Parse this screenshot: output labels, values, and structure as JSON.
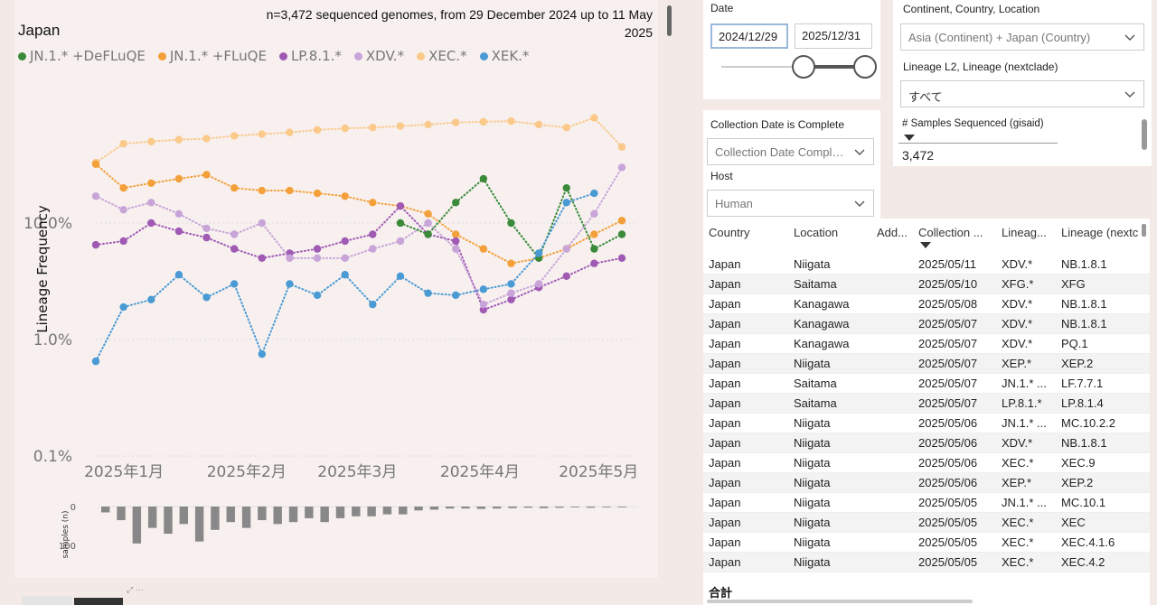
{
  "chart": {
    "title": "Japan",
    "subtitle": "n=3,472 sequenced genomes, from 29 December 2024 up to 11 May 2025",
    "ylabel": "Lineage Frequency",
    "hist_ylabel": "samples (n)",
    "hist_ticks": [
      "0",
      "100"
    ],
    "yticks": [
      {
        "label": "10.0%",
        "value": 10
      },
      {
        "label": "1.0%",
        "value": 1
      },
      {
        "label": "0.1%",
        "value": 0.1
      }
    ],
    "xticks": [
      {
        "label": "2025年1月",
        "day": 3
      },
      {
        "label": "2025年2月",
        "day": 34
      },
      {
        "label": "2025年3月",
        "day": 62
      },
      {
        "label": "2025年4月",
        "day": 93
      },
      {
        "label": "2025年5月",
        "day": 123
      }
    ],
    "legend": [
      {
        "name": "JN.1.* +DeFLuQE",
        "color": "#3a8a3a"
      },
      {
        "name": "JN.1.* +FLuQE",
        "color": "#f4a03a"
      },
      {
        "name": "LP.8.1.*",
        "color": "#a05ab4"
      },
      {
        "name": "XDV.*",
        "color": "#c8a4d8"
      },
      {
        "name": "XEC.*",
        "color": "#fbc98a"
      },
      {
        "name": "XEK.*",
        "color": "#4a9ad4"
      }
    ]
  },
  "chart_data": {
    "type": "line",
    "title": "Japan",
    "xlabel": "",
    "ylabel": "Lineage Frequency",
    "yscale": "log",
    "ylim": [
      0.1,
      100
    ],
    "x_unit": "date",
    "series": [
      {
        "name": "XEC.*",
        "color": "#fbc98a",
        "x": [
          "2024-12-29",
          "2025-01-05",
          "2025-01-12",
          "2025-01-19",
          "2025-01-26",
          "2025-02-02",
          "2025-02-09",
          "2025-02-16",
          "2025-02-23",
          "2025-03-02",
          "2025-03-09",
          "2025-03-16",
          "2025-03-23",
          "2025-03-30",
          "2025-04-06",
          "2025-04-13",
          "2025-04-20",
          "2025-04-27",
          "2025-05-04",
          "2025-05-11"
        ],
        "y": [
          33,
          48,
          50,
          52,
          53,
          56,
          58,
          60,
          63,
          65,
          66,
          68,
          70,
          73,
          74,
          75,
          70,
          66,
          80,
          45
        ]
      },
      {
        "name": "JN.1.* +FLuQE",
        "color": "#f4a03a",
        "x": [
          "2024-12-29",
          "2025-01-05",
          "2025-01-12",
          "2025-01-19",
          "2025-01-26",
          "2025-02-02",
          "2025-02-09",
          "2025-02-16",
          "2025-02-23",
          "2025-03-02",
          "2025-03-09",
          "2025-03-16",
          "2025-03-23",
          "2025-03-30",
          "2025-04-06",
          "2025-04-13",
          "2025-04-20",
          "2025-04-27",
          "2025-05-04",
          "2025-05-11"
        ],
        "y": [
          32,
          20,
          22,
          24,
          26,
          20,
          19,
          19,
          18,
          17,
          15,
          14,
          12,
          8,
          6,
          4.5,
          5,
          6,
          8,
          10.5
        ]
      },
      {
        "name": "LP.8.1.*",
        "color": "#a05ab4",
        "x": [
          "2024-12-29",
          "2025-01-05",
          "2025-01-12",
          "2025-01-19",
          "2025-01-26",
          "2025-02-02",
          "2025-02-09",
          "2025-02-16",
          "2025-02-23",
          "2025-03-02",
          "2025-03-09",
          "2025-03-16",
          "2025-03-23",
          "2025-03-30",
          "2025-04-06",
          "2025-04-13",
          "2025-04-20",
          "2025-04-27",
          "2025-05-04",
          "2025-05-11"
        ],
        "y": [
          6.5,
          7,
          10,
          8.5,
          7.5,
          6,
          5,
          5.5,
          6,
          7,
          8,
          14,
          8,
          7,
          1.8,
          2.2,
          2.8,
          3.5,
          4.5,
          5
        ]
      },
      {
        "name": "XDV.*",
        "color": "#c8a4d8",
        "x": [
          "2024-12-29",
          "2025-01-05",
          "2025-01-12",
          "2025-01-19",
          "2025-01-26",
          "2025-02-02",
          "2025-02-09",
          "2025-02-16",
          "2025-02-23",
          "2025-03-02",
          "2025-03-09",
          "2025-03-16",
          "2025-03-23",
          "2025-03-30",
          "2025-04-06",
          "2025-04-13",
          "2025-04-20",
          "2025-04-27",
          "2025-05-04",
          "2025-05-11"
        ],
        "y": [
          17,
          13,
          15,
          12,
          9,
          8,
          10,
          5,
          5,
          5,
          6,
          7,
          10,
          6,
          2,
          2.5,
          3,
          6,
          12,
          30
        ]
      },
      {
        "name": "JN.1.* +DeFLuQE",
        "color": "#3a8a3a",
        "x": [
          "2025-03-16",
          "2025-03-23",
          "2025-03-30",
          "2025-04-06",
          "2025-04-13",
          "2025-04-20",
          "2025-04-27",
          "2025-05-04",
          "2025-05-11"
        ],
        "y": [
          10,
          8,
          15,
          24,
          10,
          5,
          20,
          6,
          8
        ]
      },
      {
        "name": "XEK.*",
        "color": "#4a9ad4",
        "x": [
          "2024-12-29",
          "2025-01-05",
          "2025-01-12",
          "2025-01-19",
          "2025-01-26",
          "2025-02-02",
          "2025-02-09",
          "2025-02-16",
          "2025-02-23",
          "2025-03-02",
          "2025-03-09",
          "2025-03-16",
          "2025-03-23",
          "2025-03-30",
          "2025-04-06",
          "2025-04-13",
          "2025-04-20",
          "2025-04-27",
          "2025-05-04"
        ],
        "y": [
          0.65,
          1.9,
          2.2,
          3.6,
          2.3,
          3.0,
          0.75,
          3.0,
          2.4,
          3.6,
          2.0,
          3.5,
          2.5,
          2.4,
          2.7,
          3.0,
          5.5,
          15,
          18
        ]
      }
    ],
    "histogram": {
      "label": "samples (n)",
      "ylim": [
        0,
        100
      ],
      "values": [
        15,
        35,
        95,
        55,
        70,
        45,
        90,
        60,
        40,
        55,
        35,
        45,
        40,
        30,
        40,
        30,
        25,
        25,
        20,
        20,
        10,
        8,
        5,
        5,
        6,
        5,
        4,
        3,
        4,
        3,
        2,
        3,
        2,
        2
      ]
    },
    "legend_position": "top-left",
    "grid": true
  },
  "filters": {
    "date_label": "Date",
    "date_start": "2024/12/29",
    "date_end": "2025/12/31",
    "location_label": "Continent, Country, Location",
    "location_value": "Asia (Continent) + Japan (Country)",
    "lineage_label": "Lineage L2, Lineage (nextclade)",
    "lineage_value": "すべて",
    "collection_label": "Collection Date is Complete",
    "collection_value": "Collection Date Compl…",
    "host_label": "Host",
    "host_value": "Human",
    "samples_label": "# Samples Sequenced (gisaid)",
    "samples_value": "3,472"
  },
  "table": {
    "headers": [
      "Country",
      "Location",
      "Add...",
      "Collection ...",
      "Lineag...",
      "Lineage (nextc"
    ],
    "rows": [
      [
        "Japan",
        "Niigata",
        "",
        "2025/05/11",
        "XDV.*",
        "NB.1.8.1"
      ],
      [
        "Japan",
        "Saitama",
        "",
        "2025/05/10",
        "XFG.*",
        "XFG"
      ],
      [
        "Japan",
        "Kanagawa",
        "",
        "2025/05/08",
        "XDV.*",
        "NB.1.8.1"
      ],
      [
        "Japan",
        "Kanagawa",
        "",
        "2025/05/07",
        "XDV.*",
        "NB.1.8.1"
      ],
      [
        "Japan",
        "Kanagawa",
        "",
        "2025/05/07",
        "XDV.*",
        "PQ.1"
      ],
      [
        "Japan",
        "Niigata",
        "",
        "2025/05/07",
        "XEP.*",
        "XEP.2"
      ],
      [
        "Japan",
        "Saitama",
        "",
        "2025/05/07",
        "JN.1.* ...",
        "LF.7.7.1"
      ],
      [
        "Japan",
        "Saitama",
        "",
        "2025/05/07",
        "LP.8.1.*",
        "LP.8.1.4"
      ],
      [
        "Japan",
        "Niigata",
        "",
        "2025/05/06",
        "JN.1.* ...",
        "MC.10.2.2"
      ],
      [
        "Japan",
        "Niigata",
        "",
        "2025/05/06",
        "XDV.*",
        "NB.1.8.1"
      ],
      [
        "Japan",
        "Niigata",
        "",
        "2025/05/06",
        "XEC.*",
        "XEC.9"
      ],
      [
        "Japan",
        "Niigata",
        "",
        "2025/05/06",
        "XEP.*",
        "XEP.2"
      ],
      [
        "Japan",
        "Niigata",
        "",
        "2025/05/05",
        "JN.1.* ...",
        "MC.10.1"
      ],
      [
        "Japan",
        "Niigata",
        "",
        "2025/05/05",
        "XEC.*",
        "XEC"
      ],
      [
        "Japan",
        "Niigata",
        "",
        "2025/05/05",
        "XEC.*",
        "XEC.4.1.6"
      ],
      [
        "Japan",
        "Niigata",
        "",
        "2025/05/05",
        "XEC.*",
        "XEC.4.2"
      ]
    ],
    "total_label": "合計"
  }
}
